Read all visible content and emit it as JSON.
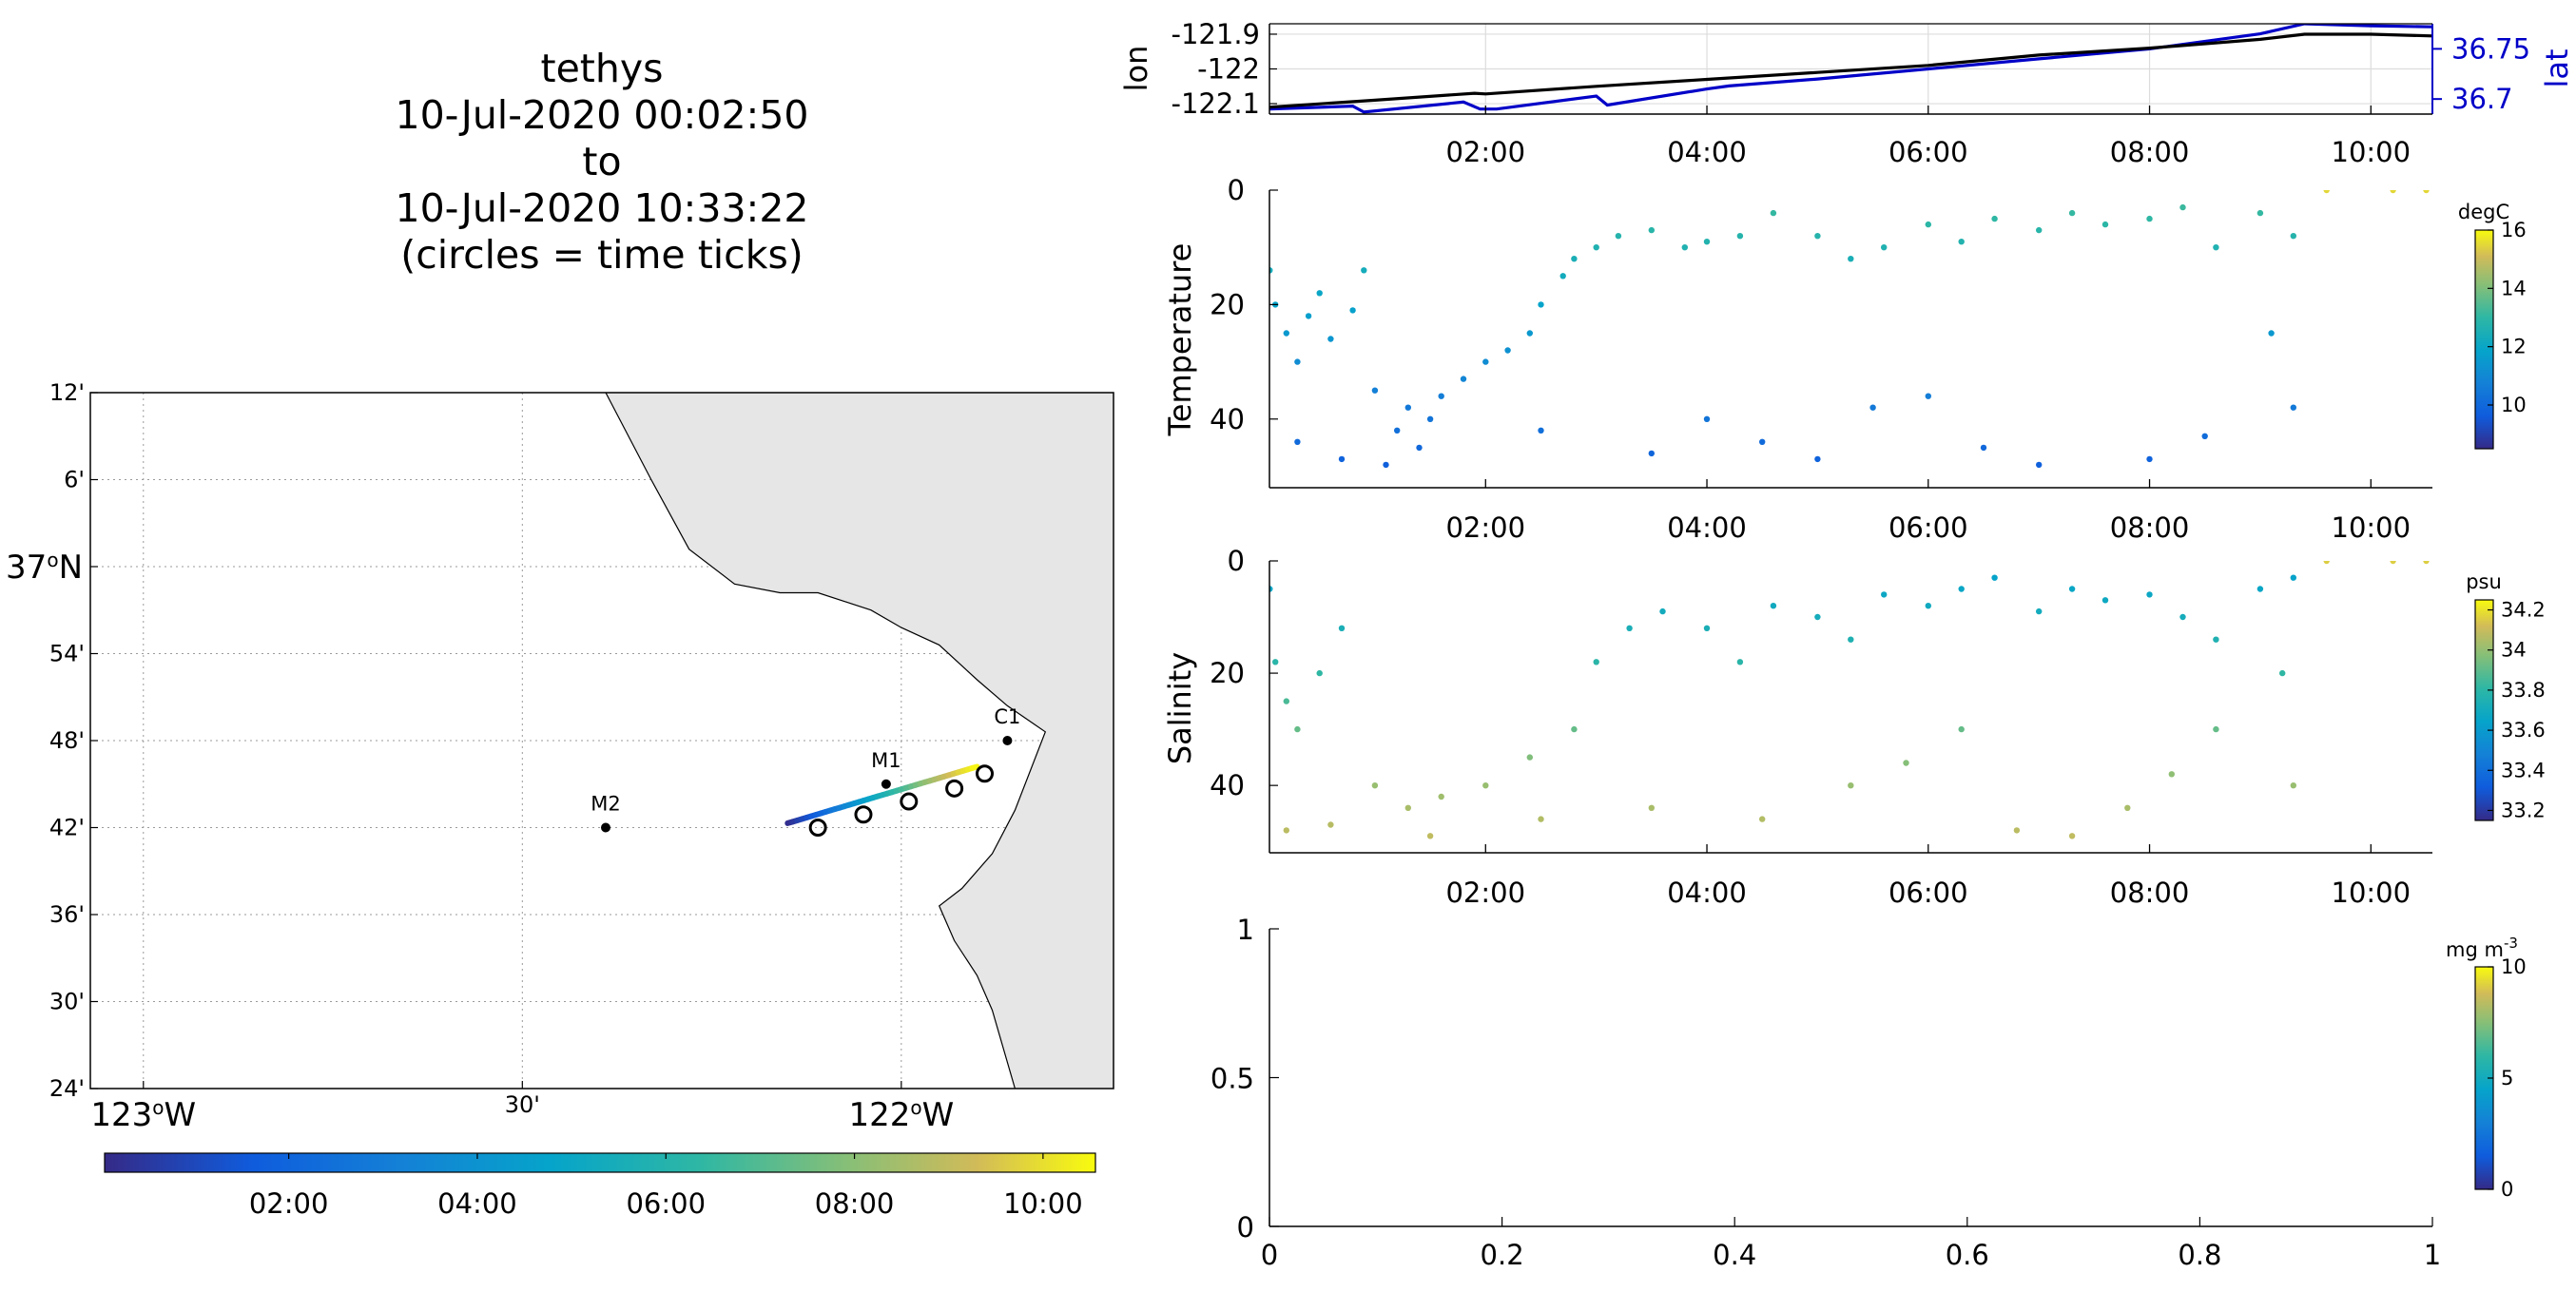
{
  "title": {
    "lines": [
      "tethys",
      "10-Jul-2020 00:02:50",
      "to",
      "10-Jul-2020 10:33:22",
      "(circles = time ticks)"
    ]
  },
  "map": {
    "lat_ticks": [
      "12'",
      "6'",
      "37°N",
      "54'",
      "48'",
      "42'",
      "36'",
      "30'",
      "24'"
    ],
    "lon_ticks": [
      "123°W",
      "30'",
      "122°W"
    ],
    "lat_range": [
      36.4,
      37.2
    ],
    "lon_range": [
      -123.07,
      -121.72
    ],
    "grid_lons": [
      -123.0,
      -122.5,
      -122.0
    ],
    "grid_lats": [
      36.5,
      36.6,
      36.7,
      36.8,
      36.9,
      37.0,
      37.1
    ],
    "land_color": "#e6e6e6",
    "coast": [
      [
        -122.39,
        37.2
      ],
      [
        -122.33,
        37.1
      ],
      [
        -122.28,
        37.02
      ],
      [
        -122.22,
        36.98
      ],
      [
        -122.16,
        36.97
      ],
      [
        -122.11,
        36.97
      ],
      [
        -122.04,
        36.95
      ],
      [
        -122.0,
        36.93
      ],
      [
        -121.95,
        36.91
      ],
      [
        -121.9,
        36.87
      ],
      [
        -121.86,
        36.84
      ],
      [
        -121.81,
        36.81
      ],
      [
        -121.85,
        36.72
      ],
      [
        -121.88,
        36.67
      ],
      [
        -121.92,
        36.63
      ],
      [
        -121.95,
        36.61
      ],
      [
        -121.93,
        36.57
      ],
      [
        -121.9,
        36.53
      ],
      [
        -121.88,
        36.49
      ],
      [
        -121.85,
        36.4
      ]
    ],
    "stations": [
      {
        "name": "M1",
        "lon": -122.02,
        "lat": 36.75
      },
      {
        "name": "M2",
        "lon": -122.39,
        "lat": 36.7
      },
      {
        "name": "C1",
        "lon": -121.86,
        "lat": 36.8
      }
    ],
    "track": {
      "start": [
        -122.15,
        36.705
      ],
      "end": [
        -121.9,
        36.77
      ]
    },
    "time_circles": [
      {
        "lon": -122.11,
        "lat": 36.7
      },
      {
        "lon": -122.05,
        "lat": 36.715
      },
      {
        "lon": -121.99,
        "lat": 36.73
      },
      {
        "lon": -121.93,
        "lat": 36.745
      },
      {
        "lon": -121.89,
        "lat": 36.762
      }
    ],
    "colorbar_ticks": [
      "02:00",
      "04:00",
      "06:00",
      "08:00",
      "10:00"
    ]
  },
  "navigation_panel": {
    "ylabel_left": "lon",
    "ylabel_right": "lat",
    "left_ticks": [
      "-121.9",
      "-122",
      "-122.1"
    ],
    "right_ticks": [
      "36.75",
      "36.7"
    ],
    "lon_range": [
      -122.13,
      -121.87
    ],
    "lat_range": [
      36.685,
      36.775
    ],
    "right_color": "#0000c8"
  },
  "time_ticks": [
    "02:00",
    "04:00",
    "06:00",
    "08:00",
    "10:00"
  ],
  "time_tick_hours": [
    2,
    4,
    6,
    8,
    10
  ],
  "time_range_hours": [
    0.047,
    10.556
  ],
  "temperature_panel": {
    "ylabel": "Temperature",
    "y_ticks": [
      "0",
      "20",
      "40"
    ],
    "depth_range": [
      0,
      52
    ],
    "colorbar": {
      "unit": "degC",
      "ticks": [
        "16",
        "14",
        "12",
        "10"
      ],
      "range": [
        8.5,
        16
      ]
    }
  },
  "salinity_panel": {
    "ylabel": "Salinity",
    "y_ticks": [
      "0",
      "20",
      "40"
    ],
    "depth_range": [
      0,
      52
    ],
    "colorbar": {
      "unit": "psu",
      "ticks": [
        "34.2",
        "34",
        "33.8",
        "33.6",
        "33.4",
        "33.2"
      ],
      "range": [
        33.15,
        34.25
      ]
    }
  },
  "empty_panel": {
    "y_ticks": [
      "1",
      "0.5",
      "0"
    ],
    "x_ticks": [
      "0",
      "0.2",
      "0.4",
      "0.6",
      "0.8",
      "1"
    ],
    "colorbar": {
      "unit": "mg m",
      "unit_exp": "-3",
      "ticks": [
        "10",
        "5",
        "0"
      ],
      "range": [
        0,
        10
      ]
    }
  },
  "chart_data": [
    {
      "type": "line",
      "panel": "navigation",
      "xlabel": "",
      "ylabel": "lon",
      "x_unit": "hours since 10-Jul-2020 00:00",
      "series": [
        {
          "name": "lon",
          "color": "#000000",
          "x": [
            0.05,
            1.0,
            1.9,
            2.0,
            3.0,
            4.0,
            5.0,
            6.0,
            7.0,
            8.0,
            9.0,
            9.4,
            10.0,
            10.55
          ],
          "y": [
            -122.11,
            -122.09,
            -122.07,
            -122.072,
            -122.05,
            -122.03,
            -122.01,
            -121.99,
            -121.96,
            -121.94,
            -121.915,
            -121.9,
            -121.9,
            -121.905
          ]
        },
        {
          "name": "lat",
          "color": "#0000c8",
          "x": [
            0.05,
            0.8,
            0.9,
            1.8,
            1.95,
            2.1,
            3.0,
            3.1,
            4.0,
            4.2,
            5.0,
            6.0,
            7.0,
            8.0,
            9.0,
            9.4,
            10.0,
            10.55
          ],
          "y": [
            36.69,
            36.693,
            36.687,
            36.697,
            36.69,
            36.69,
            36.703,
            36.694,
            36.71,
            36.713,
            36.72,
            36.73,
            36.74,
            36.75,
            36.765,
            36.775,
            36.773,
            36.772
          ]
        }
      ]
    },
    {
      "type": "scatter",
      "panel": "temperature",
      "ylabel": "Temperature",
      "color_unit": "degC",
      "clim": [
        8.5,
        16
      ],
      "note": "points given as [hours, depth_m]; colour decreases with depth",
      "points": [
        [
          0.05,
          14
        ],
        [
          0.1,
          20
        ],
        [
          0.2,
          25
        ],
        [
          0.3,
          30
        ],
        [
          0.4,
          22
        ],
        [
          0.5,
          18
        ],
        [
          0.6,
          26
        ],
        [
          0.8,
          21
        ],
        [
          0.9,
          14
        ],
        [
          1.0,
          35
        ],
        [
          1.2,
          42
        ],
        [
          1.3,
          38
        ],
        [
          1.4,
          45
        ],
        [
          1.5,
          40
        ],
        [
          1.6,
          36
        ],
        [
          1.8,
          33
        ],
        [
          2.0,
          30
        ],
        [
          2.2,
          28
        ],
        [
          2.4,
          25
        ],
        [
          2.5,
          20
        ],
        [
          2.7,
          15
        ],
        [
          2.8,
          12
        ],
        [
          3.0,
          10
        ],
        [
          3.2,
          8
        ],
        [
          3.5,
          7
        ],
        [
          3.8,
          10
        ],
        [
          4.0,
          9
        ],
        [
          4.3,
          8
        ],
        [
          4.6,
          4
        ],
        [
          5.0,
          8
        ],
        [
          5.3,
          12
        ],
        [
          5.6,
          10
        ],
        [
          6.0,
          6
        ],
        [
          6.3,
          9
        ],
        [
          6.6,
          5
        ],
        [
          7.0,
          7
        ],
        [
          7.3,
          4
        ],
        [
          7.6,
          6
        ],
        [
          8.0,
          5
        ],
        [
          8.3,
          3
        ],
        [
          8.6,
          10
        ],
        [
          9.0,
          4
        ],
        [
          9.3,
          8
        ],
        [
          0.3,
          44
        ],
        [
          0.7,
          47
        ],
        [
          1.1,
          48
        ],
        [
          2.5,
          42
        ],
        [
          3.5,
          46
        ],
        [
          4.0,
          40
        ],
        [
          4.5,
          44
        ],
        [
          5.0,
          47
        ],
        [
          5.5,
          38
        ],
        [
          6.0,
          36
        ],
        [
          6.5,
          45
        ],
        [
          7.0,
          48
        ],
        [
          8.0,
          47
        ],
        [
          8.5,
          43
        ],
        [
          9.1,
          25
        ],
        [
          9.3,
          38
        ],
        [
          9.6,
          0
        ],
        [
          10.2,
          0
        ],
        [
          10.5,
          0
        ]
      ]
    },
    {
      "type": "scatter",
      "panel": "salinity",
      "ylabel": "Salinity",
      "color_unit": "psu",
      "clim": [
        33.15,
        34.25
      ],
      "note": "points given as [hours, depth_m]; colour increases with depth",
      "points": [
        [
          0.05,
          5
        ],
        [
          0.1,
          18
        ],
        [
          0.2,
          25
        ],
        [
          0.3,
          30
        ],
        [
          0.5,
          20
        ],
        [
          0.7,
          12
        ],
        [
          1.0,
          40
        ],
        [
          1.3,
          44
        ],
        [
          1.6,
          42
        ],
        [
          2.0,
          40
        ],
        [
          2.4,
          35
        ],
        [
          2.8,
          30
        ],
        [
          3.0,
          18
        ],
        [
          3.3,
          12
        ],
        [
          3.6,
          9
        ],
        [
          4.0,
          12
        ],
        [
          4.3,
          18
        ],
        [
          4.6,
          8
        ],
        [
          5.0,
          10
        ],
        [
          5.3,
          14
        ],
        [
          5.6,
          6
        ],
        [
          6.0,
          8
        ],
        [
          6.3,
          5
        ],
        [
          6.6,
          3
        ],
        [
          7.0,
          9
        ],
        [
          7.3,
          5
        ],
        [
          7.6,
          7
        ],
        [
          8.0,
          6
        ],
        [
          8.3,
          10
        ],
        [
          8.6,
          14
        ],
        [
          9.0,
          5
        ],
        [
          9.3,
          3
        ],
        [
          0.2,
          48
        ],
        [
          0.6,
          47
        ],
        [
          1.5,
          49
        ],
        [
          2.5,
          46
        ],
        [
          3.5,
          44
        ],
        [
          4.5,
          46
        ],
        [
          5.3,
          40
        ],
        [
          5.8,
          36
        ],
        [
          6.3,
          30
        ],
        [
          6.8,
          48
        ],
        [
          7.3,
          49
        ],
        [
          7.8,
          44
        ],
        [
          8.2,
          38
        ],
        [
          8.6,
          30
        ],
        [
          9.2,
          20
        ],
        [
          9.3,
          40
        ],
        [
          9.6,
          0
        ],
        [
          10.2,
          0
        ],
        [
          10.5,
          0
        ]
      ]
    },
    {
      "type": "scatter",
      "panel": "empty",
      "xlim": [
        0,
        1
      ],
      "ylim": [
        0,
        1
      ],
      "points": []
    }
  ]
}
